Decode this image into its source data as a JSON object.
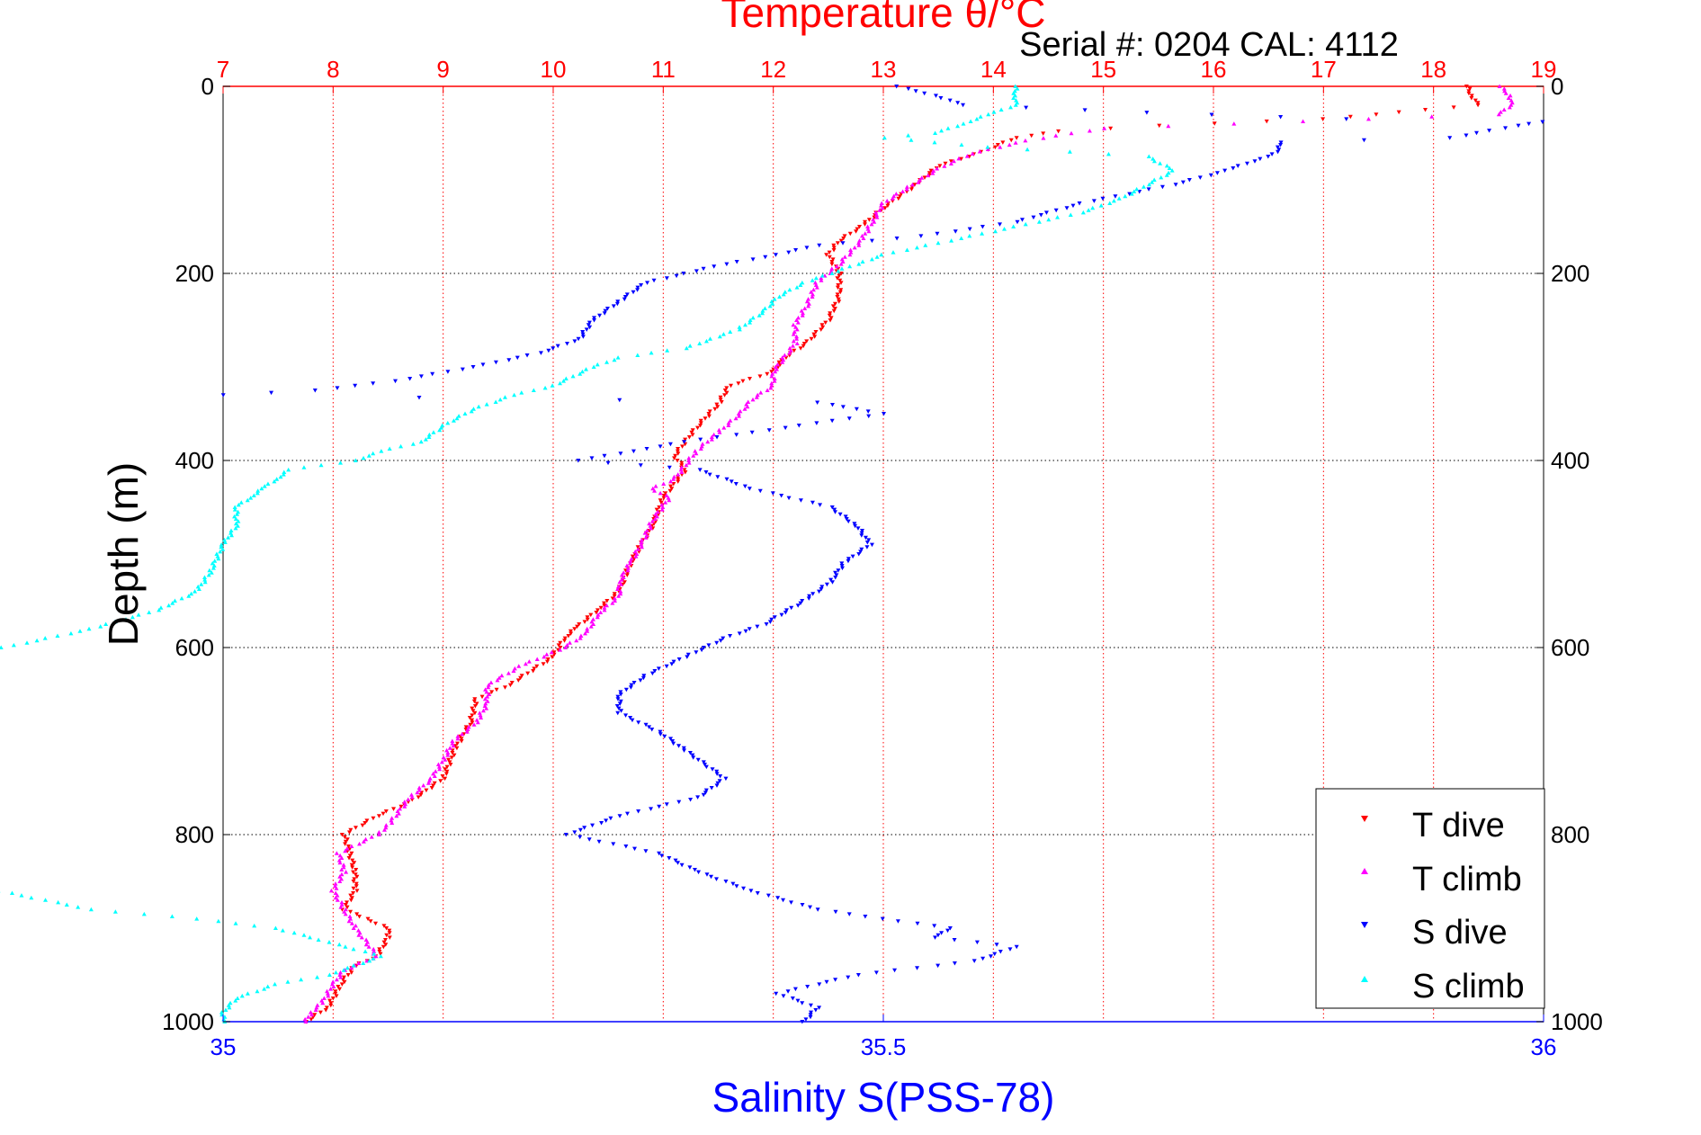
{
  "chart_data": {
    "type": "scatter",
    "title": "Temperature θ/°C",
    "subtitle": "Serial #: 0204  CAL: 4112",
    "ylabel": "Depth (m)",
    "xlabel_bottom": "Salinity S(PSS-78)",
    "y_axis": {
      "range": [
        0,
        1000
      ],
      "reversed": true,
      "ticks": [
        "0",
        "200",
        "400",
        "600",
        "800",
        "1000"
      ]
    },
    "temperature_axis": {
      "range": [
        7,
        19
      ],
      "ticks": [
        "7",
        "8",
        "9",
        "10",
        "11",
        "12",
        "13",
        "14",
        "15",
        "16",
        "17",
        "18",
        "19"
      ]
    },
    "salinity_axis": {
      "range": [
        35,
        36
      ],
      "ticks": [
        "35",
        "35.5",
        "36"
      ]
    },
    "grid": true,
    "legend": {
      "placement": "bottom-right",
      "entries": [
        "T dive",
        "T climb",
        "S dive",
        "S climb"
      ]
    },
    "colors": {
      "temperature": "#ff0000",
      "salinity": "#0000ff",
      "t_dive": "#ff0000",
      "t_climb": "#ff00ff",
      "s_dive": "#0000ff",
      "s_climb": "#00ffff",
      "grid_temperature": "#ff0000",
      "grid_depth": "#000000"
    },
    "series": [
      {
        "name": "T dive",
        "axis": "temperature",
        "marker": "triangle-down",
        "points": [
          [
            18.3,
            0
          ],
          [
            18.35,
            10
          ],
          [
            18.4,
            20
          ],
          [
            17.0,
            35
          ],
          [
            15.5,
            42
          ],
          [
            14.6,
            48
          ],
          [
            14.2,
            55
          ],
          [
            13.9,
            70
          ],
          [
            13.5,
            85
          ],
          [
            13.3,
            105
          ],
          [
            13.0,
            130
          ],
          [
            12.8,
            150
          ],
          [
            12.6,
            165
          ],
          [
            12.5,
            180
          ],
          [
            12.6,
            200
          ],
          [
            12.6,
            225
          ],
          [
            12.5,
            250
          ],
          [
            12.3,
            275
          ],
          [
            12.1,
            290
          ],
          [
            12.0,
            305
          ],
          [
            11.6,
            320
          ],
          [
            11.5,
            340
          ],
          [
            11.3,
            365
          ],
          [
            11.2,
            380
          ],
          [
            11.1,
            395
          ],
          [
            11.2,
            410
          ],
          [
            11.0,
            440
          ],
          [
            10.9,
            470
          ],
          [
            10.8,
            490
          ],
          [
            10.7,
            510
          ],
          [
            10.6,
            540
          ],
          [
            10.4,
            560
          ],
          [
            10.2,
            580
          ],
          [
            10.1,
            590
          ],
          [
            10.0,
            610
          ],
          [
            9.6,
            640
          ],
          [
            9.3,
            655
          ],
          [
            9.25,
            680
          ],
          [
            9.1,
            710
          ],
          [
            9.0,
            740
          ],
          [
            8.7,
            765
          ],
          [
            8.4,
            780
          ],
          [
            8.1,
            800
          ],
          [
            8.15,
            820
          ],
          [
            8.2,
            840
          ],
          [
            8.2,
            860
          ],
          [
            8.1,
            880
          ],
          [
            8.3,
            890
          ],
          [
            8.5,
            900
          ],
          [
            8.5,
            910
          ],
          [
            8.4,
            930
          ],
          [
            8.2,
            940
          ],
          [
            8.1,
            955
          ],
          [
            8.05,
            965
          ],
          [
            7.95,
            985
          ],
          [
            7.75,
            1000
          ]
        ]
      },
      {
        "name": "T climb",
        "axis": "temperature",
        "marker": "triangle-up",
        "points": [
          [
            18.6,
            0
          ],
          [
            18.7,
            10
          ],
          [
            18.7,
            20
          ],
          [
            18.6,
            30
          ],
          [
            15.0,
            45
          ],
          [
            14.3,
            58
          ],
          [
            13.8,
            72
          ],
          [
            13.5,
            88
          ],
          [
            13.2,
            110
          ],
          [
            13.0,
            125
          ],
          [
            12.9,
            145
          ],
          [
            12.8,
            165
          ],
          [
            12.6,
            190
          ],
          [
            12.4,
            210
          ],
          [
            12.3,
            235
          ],
          [
            12.2,
            255
          ],
          [
            12.2,
            275
          ],
          [
            12.1,
            290
          ],
          [
            12.0,
            305
          ],
          [
            12.0,
            320
          ],
          [
            11.8,
            335
          ],
          [
            11.7,
            350
          ],
          [
            11.5,
            370
          ],
          [
            11.3,
            390
          ],
          [
            11.2,
            405
          ],
          [
            11.1,
            420
          ],
          [
            10.9,
            430
          ],
          [
            11.05,
            440
          ],
          [
            10.9,
            465
          ],
          [
            10.8,
            490
          ],
          [
            10.7,
            510
          ],
          [
            10.6,
            530
          ],
          [
            10.6,
            545
          ],
          [
            10.4,
            565
          ],
          [
            10.3,
            585
          ],
          [
            10.1,
            600
          ],
          [
            9.7,
            620
          ],
          [
            9.4,
            640
          ],
          [
            9.4,
            660
          ],
          [
            9.3,
            680
          ],
          [
            9.1,
            700
          ],
          [
            9.0,
            720
          ],
          [
            8.9,
            740
          ],
          [
            8.7,
            760
          ],
          [
            8.5,
            790
          ],
          [
            8.4,
            800
          ],
          [
            8.05,
            820
          ],
          [
            8.1,
            840
          ],
          [
            8.0,
            860
          ],
          [
            8.1,
            880
          ],
          [
            8.2,
            900
          ],
          [
            8.3,
            915
          ],
          [
            8.4,
            930
          ],
          [
            8.1,
            945
          ],
          [
            8.0,
            960
          ],
          [
            7.9,
            980
          ],
          [
            7.8,
            990
          ],
          [
            7.75,
            1000
          ]
        ]
      },
      {
        "name": "S dive",
        "axis": "salinity",
        "marker": "triangle-down",
        "points": [
          [
            35.51,
            0
          ],
          [
            35.54,
            10
          ],
          [
            35.56,
            20
          ],
          [
            35.7,
            28
          ],
          [
            35.85,
            35
          ],
          [
            36.0,
            38
          ],
          [
            35.98,
            42
          ],
          [
            35.93,
            55
          ],
          [
            35.8,
            60
          ],
          [
            35.8,
            70
          ],
          [
            35.78,
            80
          ],
          [
            35.76,
            90
          ],
          [
            35.72,
            105
          ],
          [
            35.65,
            125
          ],
          [
            35.6,
            145
          ],
          [
            35.53,
            160
          ],
          [
            35.45,
            170
          ],
          [
            35.42,
            180
          ],
          [
            35.38,
            190
          ],
          [
            35.35,
            200
          ],
          [
            35.32,
            210
          ],
          [
            35.3,
            230
          ],
          [
            35.28,
            250
          ],
          [
            35.27,
            270
          ],
          [
            35.24,
            285
          ],
          [
            35.19,
            300
          ],
          [
            35.13,
            315
          ],
          [
            35.07,
            325
          ],
          [
            35.0,
            330
          ],
          [
            35.45,
            338
          ],
          [
            35.48,
            345
          ],
          [
            35.5,
            350
          ],
          [
            35.45,
            360
          ],
          [
            35.4,
            370
          ],
          [
            35.35,
            380
          ],
          [
            35.31,
            390
          ],
          [
            35.27,
            400
          ],
          [
            35.36,
            410
          ],
          [
            35.4,
            430
          ],
          [
            35.46,
            450
          ],
          [
            35.48,
            470
          ],
          [
            35.49,
            490
          ],
          [
            35.47,
            510
          ],
          [
            35.46,
            530
          ],
          [
            35.44,
            550
          ],
          [
            35.41,
            575
          ],
          [
            35.38,
            590
          ],
          [
            35.35,
            610
          ],
          [
            35.32,
            630
          ],
          [
            35.3,
            650
          ],
          [
            35.3,
            670
          ],
          [
            35.33,
            690
          ],
          [
            35.35,
            710
          ],
          [
            35.38,
            740
          ],
          [
            35.36,
            760
          ],
          [
            35.3,
            780
          ],
          [
            35.26,
            800
          ],
          [
            35.33,
            820
          ],
          [
            35.36,
            840
          ],
          [
            35.4,
            860
          ],
          [
            35.45,
            880
          ],
          [
            35.5,
            890
          ],
          [
            35.55,
            900
          ],
          [
            35.54,
            910
          ],
          [
            35.6,
            920
          ],
          [
            35.57,
            935
          ],
          [
            35.48,
            950
          ],
          [
            35.42,
            970
          ],
          [
            35.45,
            985
          ],
          [
            35.44,
            1000
          ]
        ]
      },
      {
        "name": "S climb",
        "axis": "salinity",
        "marker": "triangle-up",
        "points": [
          [
            35.6,
            0
          ],
          [
            35.6,
            10
          ],
          [
            35.6,
            20
          ],
          [
            35.58,
            30
          ],
          [
            35.56,
            40
          ],
          [
            35.54,
            50
          ],
          [
            35.5,
            55
          ],
          [
            35.58,
            65
          ],
          [
            35.7,
            75
          ],
          [
            35.72,
            90
          ],
          [
            35.7,
            105
          ],
          [
            35.68,
            120
          ],
          [
            35.65,
            135
          ],
          [
            35.6,
            150
          ],
          [
            35.55,
            165
          ],
          [
            35.5,
            180
          ],
          [
            35.48,
            190
          ],
          [
            35.44,
            210
          ],
          [
            35.42,
            225
          ],
          [
            35.41,
            240
          ],
          [
            35.39,
            260
          ],
          [
            35.37,
            270
          ],
          [
            35.35,
            280
          ],
          [
            35.3,
            290
          ],
          [
            35.28,
            300
          ],
          [
            35.25,
            320
          ],
          [
            35.22,
            330
          ],
          [
            35.19,
            345
          ],
          [
            35.17,
            360
          ],
          [
            35.15,
            380
          ],
          [
            35.12,
            390
          ],
          [
            35.1,
            400
          ],
          [
            35.05,
            410
          ],
          [
            35.04,
            420
          ],
          [
            35.03,
            430
          ],
          [
            35.02,
            440
          ],
          [
            35.01,
            450
          ],
          [
            35.01,
            470
          ],
          [
            35.0,
            490
          ],
          [
            34.99,
            520
          ],
          [
            34.98,
            540
          ],
          [
            34.95,
            560
          ],
          [
            34.9,
            580
          ],
          [
            34.85,
            595
          ],
          [
            34.8,
            610
          ],
          [
            34.74,
            630
          ],
          [
            34.72,
            650
          ],
          [
            34.76,
            670
          ],
          [
            34.78,
            690
          ],
          [
            34.76,
            710
          ],
          [
            34.79,
            740
          ],
          [
            34.81,
            760
          ],
          [
            34.77,
            780
          ],
          [
            34.73,
            800
          ],
          [
            34.74,
            820
          ],
          [
            34.79,
            840
          ],
          [
            34.83,
            860
          ],
          [
            34.9,
            880
          ],
          [
            34.98,
            890
          ],
          [
            35.04,
            900
          ],
          [
            35.08,
            915
          ],
          [
            35.12,
            930
          ],
          [
            35.08,
            950
          ],
          [
            35.04,
            960
          ],
          [
            35.01,
            975
          ],
          [
            35.0,
            990
          ],
          [
            35.0,
            1000
          ]
        ]
      }
    ]
  }
}
